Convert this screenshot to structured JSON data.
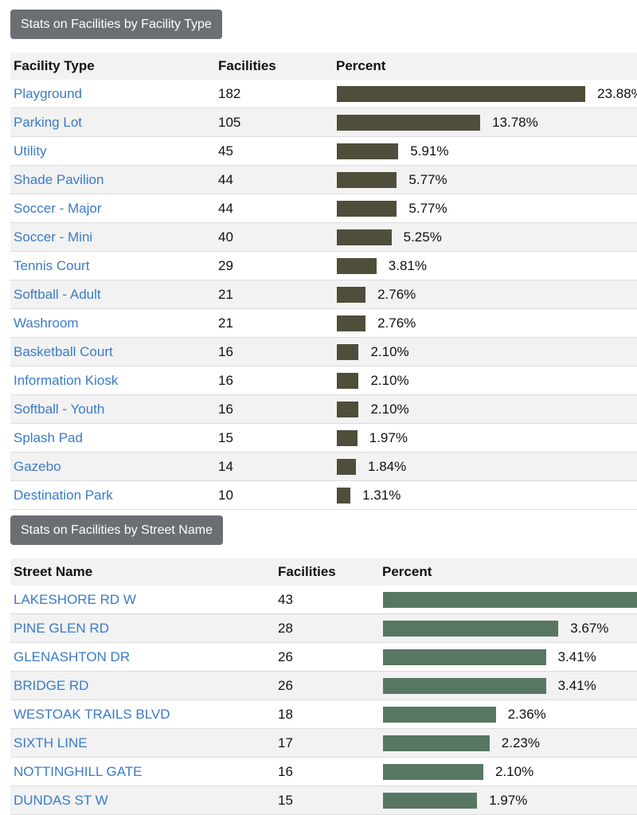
{
  "facility_type_section": {
    "button_label": "Stats on Facilities by Facility Type",
    "headers": {
      "name": "Facility Type",
      "count": "Facilities",
      "percent": "Percent"
    },
    "bar_color": "#4f4e3b",
    "rows": [
      {
        "name": "Playground",
        "count": "182",
        "percent_label": "23.88%",
        "percent": 23.88
      },
      {
        "name": "Parking Lot",
        "count": "105",
        "percent_label": "13.78%",
        "percent": 13.78
      },
      {
        "name": "Utility",
        "count": "45",
        "percent_label": "5.91%",
        "percent": 5.91
      },
      {
        "name": "Shade Pavilion",
        "count": "44",
        "percent_label": "5.77%",
        "percent": 5.77
      },
      {
        "name": "Soccer - Major",
        "count": "44",
        "percent_label": "5.77%",
        "percent": 5.77
      },
      {
        "name": "Soccer - Mini",
        "count": "40",
        "percent_label": "5.25%",
        "percent": 5.25
      },
      {
        "name": "Tennis Court",
        "count": "29",
        "percent_label": "3.81%",
        "percent": 3.81
      },
      {
        "name": "Softball - Adult",
        "count": "21",
        "percent_label": "2.76%",
        "percent": 2.76
      },
      {
        "name": "Washroom",
        "count": "21",
        "percent_label": "2.76%",
        "percent": 2.76
      },
      {
        "name": "Basketball Court",
        "count": "16",
        "percent_label": "2.10%",
        "percent": 2.1
      },
      {
        "name": "Information Kiosk",
        "count": "16",
        "percent_label": "2.10%",
        "percent": 2.1
      },
      {
        "name": "Softball - Youth",
        "count": "16",
        "percent_label": "2.10%",
        "percent": 2.1
      },
      {
        "name": "Splash Pad",
        "count": "15",
        "percent_label": "1.97%",
        "percent": 1.97
      },
      {
        "name": "Gazebo",
        "count": "14",
        "percent_label": "1.84%",
        "percent": 1.84
      },
      {
        "name": "Destination Park",
        "count": "10",
        "percent_label": "1.31%",
        "percent": 1.31
      }
    ]
  },
  "street_name_section": {
    "button_label": "Stats on Facilities by Street Name",
    "headers": {
      "name": "Street Name",
      "count": "Facilities",
      "percent": "Percent"
    },
    "bar_color": "#577763",
    "rows": [
      {
        "name": "LAKESHORE RD W",
        "count": "43",
        "percent_label": "",
        "percent": 5.64
      },
      {
        "name": "PINE GLEN RD",
        "count": "28",
        "percent_label": "3.67%",
        "percent": 3.67
      },
      {
        "name": "GLENASHTON DR",
        "count": "26",
        "percent_label": "3.41%",
        "percent": 3.41
      },
      {
        "name": "BRIDGE RD",
        "count": "26",
        "percent_label": "3.41%",
        "percent": 3.41
      },
      {
        "name": "WESTOAK TRAILS BLVD",
        "count": "18",
        "percent_label": "2.36%",
        "percent": 2.36
      },
      {
        "name": "SIXTH LINE",
        "count": "17",
        "percent_label": "2.23%",
        "percent": 2.23
      },
      {
        "name": "NOTTINGHILL GATE",
        "count": "16",
        "percent_label": "2.10%",
        "percent": 2.1
      },
      {
        "name": "DUNDAS ST W",
        "count": "15",
        "percent_label": "1.97%",
        "percent": 1.97
      }
    ]
  }
}
